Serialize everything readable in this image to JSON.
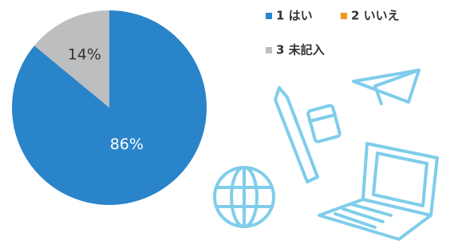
{
  "chart_data": {
    "type": "pie",
    "categories": [
      "1 はい",
      "2 いいえ",
      "3 未記入"
    ],
    "values": [
      86,
      0,
      14
    ],
    "value_labels": [
      "86%",
      null,
      "14%"
    ],
    "colors": [
      "#2a84c9",
      "#f7941d",
      "#bcbec0"
    ],
    "label_colors": [
      "#ffffff",
      "#ffffff",
      "#333333"
    ]
  }
}
